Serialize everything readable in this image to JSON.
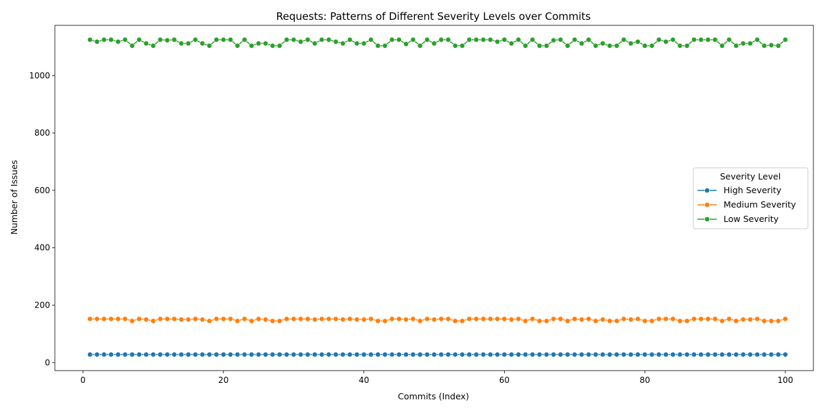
{
  "chart_data": {
    "type": "line",
    "title": "Requests: Patterns of Different Severity Levels over Commits",
    "xlabel": "Commits (Index)",
    "ylabel": "Number of Issues",
    "xlim": [
      -4,
      104
    ],
    "ylim": [
      -28,
      1175
    ],
    "xticks": [
      0,
      20,
      40,
      60,
      80,
      100
    ],
    "yticks": [
      0,
      200,
      400,
      600,
      800,
      1000
    ],
    "grid": false,
    "legend": {
      "title": "Severity Level",
      "placement": "center-right"
    },
    "x_start": 1,
    "series": [
      {
        "name": "High Severity",
        "color": "#1f77b4",
        "values": [
          28,
          28,
          28,
          28,
          28,
          28,
          28,
          28,
          28,
          28,
          28,
          28,
          28,
          28,
          28,
          28,
          28,
          28,
          28,
          28,
          28,
          28,
          28,
          28,
          28,
          28,
          28,
          28,
          28,
          28,
          28,
          28,
          28,
          28,
          28,
          28,
          28,
          28,
          28,
          28,
          28,
          28,
          28,
          28,
          28,
          28,
          28,
          28,
          28,
          28,
          28,
          28,
          28,
          28,
          28,
          28,
          28,
          28,
          28,
          28,
          28,
          28,
          28,
          28,
          28,
          28,
          28,
          28,
          28,
          28,
          28,
          28,
          28,
          28,
          28,
          28,
          28,
          28,
          28,
          28,
          28,
          28,
          28,
          28,
          28,
          28,
          28,
          28,
          28,
          28,
          28,
          28,
          28,
          28,
          28,
          28,
          28,
          28,
          28,
          28
        ]
      },
      {
        "name": "Medium Severity",
        "color": "#ff7f0e",
        "values": [
          152,
          152,
          152,
          152,
          152,
          152,
          145,
          152,
          150,
          145,
          152,
          152,
          152,
          150,
          150,
          152,
          150,
          145,
          152,
          152,
          152,
          145,
          152,
          145,
          152,
          150,
          145,
          145,
          152,
          152,
          152,
          152,
          150,
          152,
          152,
          152,
          150,
          152,
          150,
          150,
          152,
          145,
          145,
          152,
          152,
          150,
          152,
          145,
          152,
          150,
          152,
          152,
          145,
          145,
          152,
          152,
          152,
          152,
          152,
          152,
          150,
          152,
          145,
          152,
          145,
          145,
          152,
          152,
          145,
          152,
          150,
          152,
          145,
          150,
          145,
          145,
          152,
          150,
          152,
          145,
          145,
          152,
          152,
          152,
          145,
          145,
          152,
          152,
          152,
          152,
          145,
          152,
          145,
          150,
          150,
          152,
          145,
          145,
          145,
          152
        ]
      },
      {
        "name": "Low Severity",
        "color": "#2ca02c",
        "values": [
          1125,
          1118,
          1125,
          1125,
          1118,
          1125,
          1104,
          1125,
          1112,
          1104,
          1125,
          1123,
          1125,
          1112,
          1112,
          1125,
          1112,
          1104,
          1125,
          1125,
          1125,
          1104,
          1125,
          1104,
          1112,
          1112,
          1104,
          1104,
          1125,
          1125,
          1118,
          1125,
          1112,
          1125,
          1125,
          1118,
          1112,
          1125,
          1112,
          1112,
          1125,
          1104,
          1104,
          1125,
          1125,
          1110,
          1125,
          1104,
          1125,
          1112,
          1125,
          1125,
          1104,
          1104,
          1125,
          1125,
          1125,
          1125,
          1118,
          1125,
          1112,
          1125,
          1104,
          1125,
          1104,
          1104,
          1123,
          1125,
          1104,
          1125,
          1112,
          1125,
          1104,
          1112,
          1104,
          1104,
          1125,
          1112,
          1118,
          1104,
          1104,
          1125,
          1118,
          1125,
          1104,
          1104,
          1125,
          1125,
          1125,
          1125,
          1104,
          1125,
          1104,
          1112,
          1112,
          1125,
          1104,
          1106,
          1104,
          1125
        ]
      }
    ]
  }
}
